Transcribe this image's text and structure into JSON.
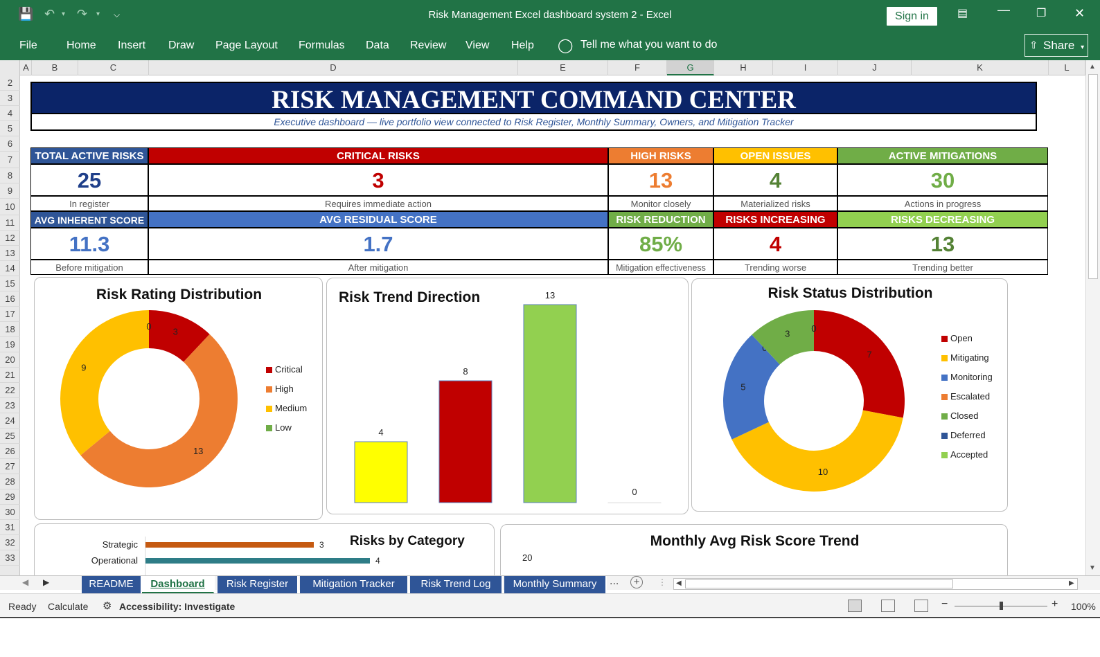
{
  "window": {
    "title": "Risk Management Excel dashboard system 2  -  Excel",
    "sign_in": "Sign in",
    "share": "Share"
  },
  "ribbon": {
    "tabs": [
      "File",
      "Home",
      "Insert",
      "Draw",
      "Page Layout",
      "Formulas",
      "Data",
      "Review",
      "View",
      "Help"
    ],
    "tell_me": "Tell me what you want to do"
  },
  "columns": [
    "A",
    "B",
    "C",
    "D",
    "E",
    "F",
    "G",
    "H",
    "I",
    "J",
    "K",
    "L"
  ],
  "rows": [
    "2",
    "3",
    "4",
    "5",
    "6",
    "7",
    "8",
    "9",
    "10",
    "11",
    "12",
    "13",
    "14",
    "15",
    "16",
    "17",
    "18",
    "19",
    "20",
    "21",
    "22",
    "23",
    "24",
    "25",
    "26",
    "27",
    "28",
    "29",
    "30",
    "31",
    "32",
    "33"
  ],
  "dashboard": {
    "title": "RISK MANAGEMENT COMMAND CENTER",
    "subtitle": "Executive dashboard — live portfolio view connected to Risk Register, Monthly Summary, Owners, and Mitigation Tracker",
    "kpis_row1": [
      {
        "label": "TOTAL ACTIVE RISKS",
        "value": "25",
        "sub": "In register",
        "header_color": "#2f5597",
        "value_color": "#1f3f8a"
      },
      {
        "label": "CRITICAL RISKS",
        "value": "3",
        "sub": "Requires immediate action",
        "header_color": "#c00000",
        "value_color": "#c00000"
      },
      {
        "label": "HIGH RISKS",
        "value": "13",
        "sub": "Monitor closely",
        "header_color": "#ed7d31",
        "value_color": "#ed7d31"
      },
      {
        "label": "OPEN ISSUES",
        "value": "4",
        "sub": "Materialized risks",
        "header_color": "#ffc000",
        "value_color": "#548235"
      },
      {
        "label": "ACTIVE MITIGATIONS",
        "value": "30",
        "sub": "Actions in progress",
        "header_color": "#70ad47",
        "value_color": "#70ad47"
      }
    ],
    "kpis_row2": [
      {
        "label": "AVG INHERENT SCORE",
        "value": "11.3",
        "sub": "Before mitigation",
        "header_color": "#2f5597",
        "value_color": "#4472c4"
      },
      {
        "label": "AVG RESIDUAL SCORE",
        "value": "1.7",
        "sub": "After mitigation",
        "header_color": "#4472c4",
        "value_color": "#4472c4"
      },
      {
        "label": "RISK REDUCTION",
        "value": "85%",
        "sub": "Mitigation effectiveness",
        "header_color": "#70ad47",
        "value_color": "#70ad47"
      },
      {
        "label": "RISKS INCREASING",
        "value": "4",
        "sub": "Trending worse",
        "header_color": "#c00000",
        "value_color": "#c00000"
      },
      {
        "label": "RISKS DECREASING",
        "value": "13",
        "sub": "Trending better",
        "header_color": "#92d050",
        "value_color": "#548235"
      }
    ]
  },
  "chart_data": [
    {
      "type": "pie",
      "title": "Risk Rating Distribution",
      "categories": [
        "Critical",
        "High",
        "Medium",
        "Low"
      ],
      "values": [
        3,
        13,
        9,
        0
      ],
      "colors": [
        "#c00000",
        "#ed7d31",
        "#ffc000",
        "#70ad47"
      ],
      "legend": "right"
    },
    {
      "type": "bar",
      "title": "Risk Trend Direction",
      "values": [
        4,
        8,
        13,
        0
      ],
      "colors": [
        "#ffff00",
        "#c00000",
        "#92d050",
        "#ffffff"
      ],
      "ylim": [
        0,
        13
      ]
    },
    {
      "type": "pie",
      "title": "Risk Status Distribution",
      "categories": [
        "Open",
        "Mitigating",
        "Monitoring",
        "Escalated",
        "Closed",
        "Deferred",
        "Accepted"
      ],
      "values": [
        7,
        10,
        5,
        0,
        3,
        0,
        0
      ],
      "colors": [
        "#c00000",
        "#ffc000",
        "#4472c4",
        "#ed7d31",
        "#70ad47",
        "#2f5597",
        "#92d050"
      ],
      "legend": "right"
    },
    {
      "type": "bar",
      "title": "Risks by Category",
      "categories": [
        "Strategic",
        "Operational"
      ],
      "values": [
        3,
        4
      ],
      "colors": [
        "#c55a11",
        "#2e7d87"
      ]
    },
    {
      "type": "line",
      "title": "Monthly Avg Risk Score Trend",
      "y_ticks": [
        "20"
      ]
    }
  ],
  "sheets": {
    "tabs": [
      "README",
      "Dashboard",
      "Risk Register",
      "Mitigation Tracker",
      "Risk Trend Log",
      "Monthly Summary"
    ],
    "active": "Dashboard",
    "more": "..."
  },
  "status": {
    "ready": "Ready",
    "calculate": "Calculate",
    "accessibility": "Accessibility: Investigate",
    "zoom": "100%"
  }
}
